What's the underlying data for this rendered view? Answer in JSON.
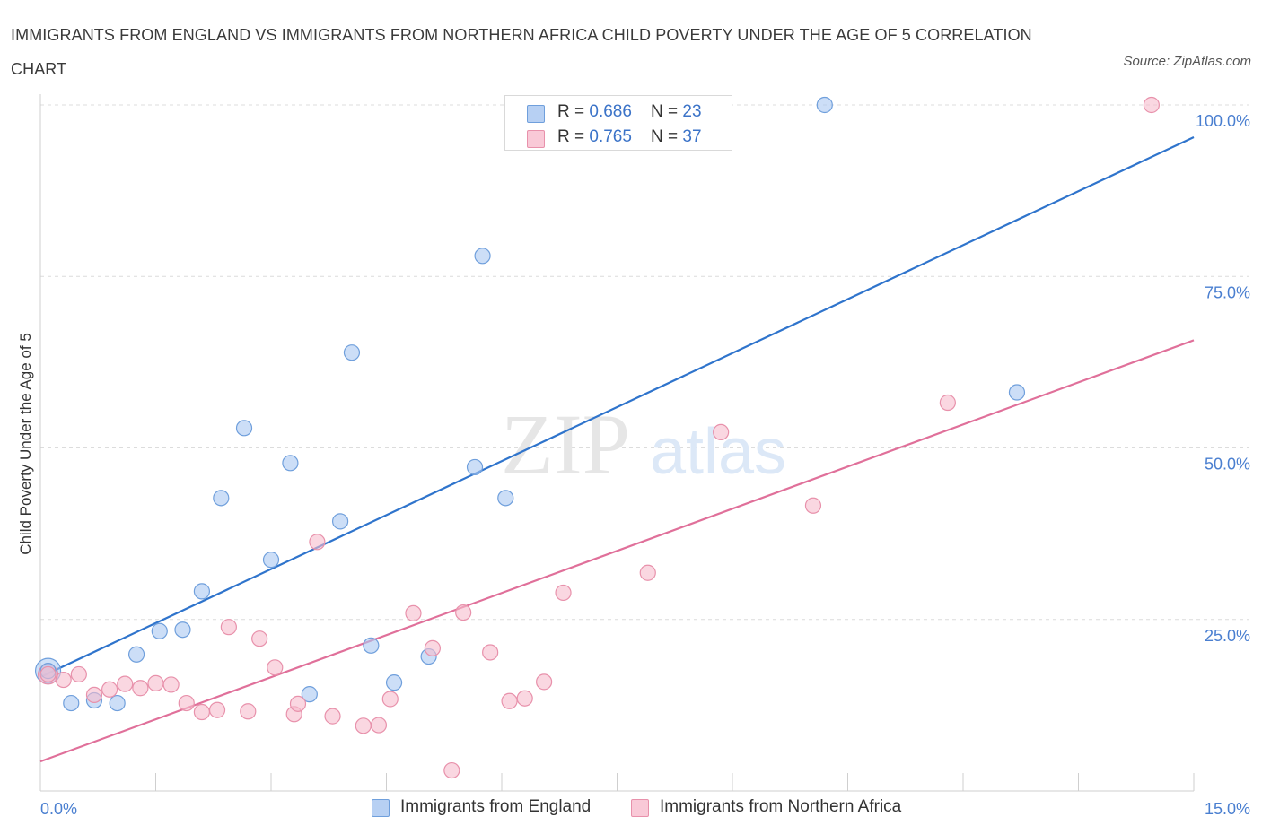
{
  "header": {
    "title": "IMMIGRANTS FROM ENGLAND VS IMMIGRANTS FROM NORTHERN AFRICA CHILD POVERTY UNDER THE AGE OF 5 CORRELATION CHART",
    "source": "Source: ZipAtlas.com"
  },
  "watermark": {
    "part1": "ZIP",
    "part2": "atlas"
  },
  "legend": {
    "rows": [
      {
        "r_label": "R = ",
        "r_value": "0.686",
        "n_label": "N = ",
        "n_value": "23"
      },
      {
        "r_label": "R = ",
        "r_value": "0.765",
        "n_label": "N = ",
        "n_value": "37"
      }
    ]
  },
  "chart_data": {
    "type": "scatter",
    "title": "IMMIGRANTS FROM ENGLAND VS IMMIGRANTS FROM NORTHERN AFRICA CHILD POVERTY UNDER THE AGE OF 5 CORRELATION CHART",
    "xlabel": "",
    "ylabel": "Child Poverty Under the Age of 5",
    "xlim": [
      0,
      15
    ],
    "ylim": [
      0,
      100
    ],
    "x_tick_labels": [
      "0.0%",
      "15.0%"
    ],
    "y_ticks": [
      25,
      50,
      75,
      100
    ],
    "y_tick_labels": [
      "25.0%",
      "50.0%",
      "75.0%",
      "100.0%"
    ],
    "grid": true,
    "legend_position": "top-center",
    "colors": {
      "england_fill": "#aac8f2",
      "england_stroke": "#6f9fdc",
      "england_line": "#2f74cc",
      "nafrica_fill": "#f7bccd",
      "nafrica_stroke": "#e891ab",
      "nafrica_line": "#e0709a",
      "tick_label": "#4a7fd0"
    },
    "series": [
      {
        "name": "Immigrants from England",
        "points": [
          [
            0.1,
            17.5
          ],
          [
            0.4,
            12.8
          ],
          [
            0.7,
            13.2
          ],
          [
            1.0,
            12.8
          ],
          [
            1.25,
            19.9
          ],
          [
            1.55,
            23.3
          ],
          [
            1.85,
            23.5
          ],
          [
            2.1,
            29.1
          ],
          [
            2.35,
            42.7
          ],
          [
            2.65,
            52.9
          ],
          [
            3.0,
            33.7
          ],
          [
            3.25,
            47.8
          ],
          [
            3.5,
            14.1
          ],
          [
            3.9,
            39.3
          ],
          [
            4.05,
            63.9
          ],
          [
            4.3,
            21.2
          ],
          [
            4.6,
            15.8
          ],
          [
            5.05,
            19.6
          ],
          [
            5.65,
            47.2
          ],
          [
            5.75,
            78.0
          ],
          [
            6.05,
            42.7
          ],
          [
            10.2,
            100.0
          ],
          [
            12.7,
            58.1
          ]
        ]
      },
      {
        "name": "Immigrants from Northern Africa",
        "points": [
          [
            0.1,
            17.0
          ],
          [
            0.3,
            16.2
          ],
          [
            0.5,
            17.0
          ],
          [
            0.7,
            14.0
          ],
          [
            0.9,
            14.8
          ],
          [
            1.1,
            15.6
          ],
          [
            1.3,
            15.0
          ],
          [
            1.5,
            15.7
          ],
          [
            1.7,
            15.5
          ],
          [
            1.9,
            12.8
          ],
          [
            2.1,
            11.5
          ],
          [
            2.3,
            11.8
          ],
          [
            2.45,
            23.9
          ],
          [
            2.7,
            11.6
          ],
          [
            2.85,
            22.2
          ],
          [
            3.05,
            18.0
          ],
          [
            3.3,
            11.2
          ],
          [
            3.35,
            12.7
          ],
          [
            3.6,
            36.3
          ],
          [
            3.8,
            10.9
          ],
          [
            4.2,
            9.5
          ],
          [
            4.4,
            9.6
          ],
          [
            4.55,
            13.4
          ],
          [
            4.85,
            25.9
          ],
          [
            5.1,
            20.8
          ],
          [
            5.35,
            3.0
          ],
          [
            5.5,
            26.0
          ],
          [
            5.85,
            20.2
          ],
          [
            6.1,
            13.1
          ],
          [
            6.3,
            13.5
          ],
          [
            6.55,
            15.9
          ],
          [
            6.8,
            28.9
          ],
          [
            7.9,
            31.8
          ],
          [
            8.85,
            52.3
          ],
          [
            10.05,
            41.6
          ],
          [
            11.8,
            56.6
          ],
          [
            14.45,
            100.0
          ]
        ]
      }
    ],
    "trend_lines": [
      {
        "series": "Immigrants from England",
        "x": [
          0,
          15
        ],
        "y": [
          16.6,
          95.3
        ]
      },
      {
        "series": "Immigrants from Northern Africa",
        "x": [
          0,
          15
        ],
        "y": [
          4.3,
          65.7
        ]
      }
    ]
  }
}
